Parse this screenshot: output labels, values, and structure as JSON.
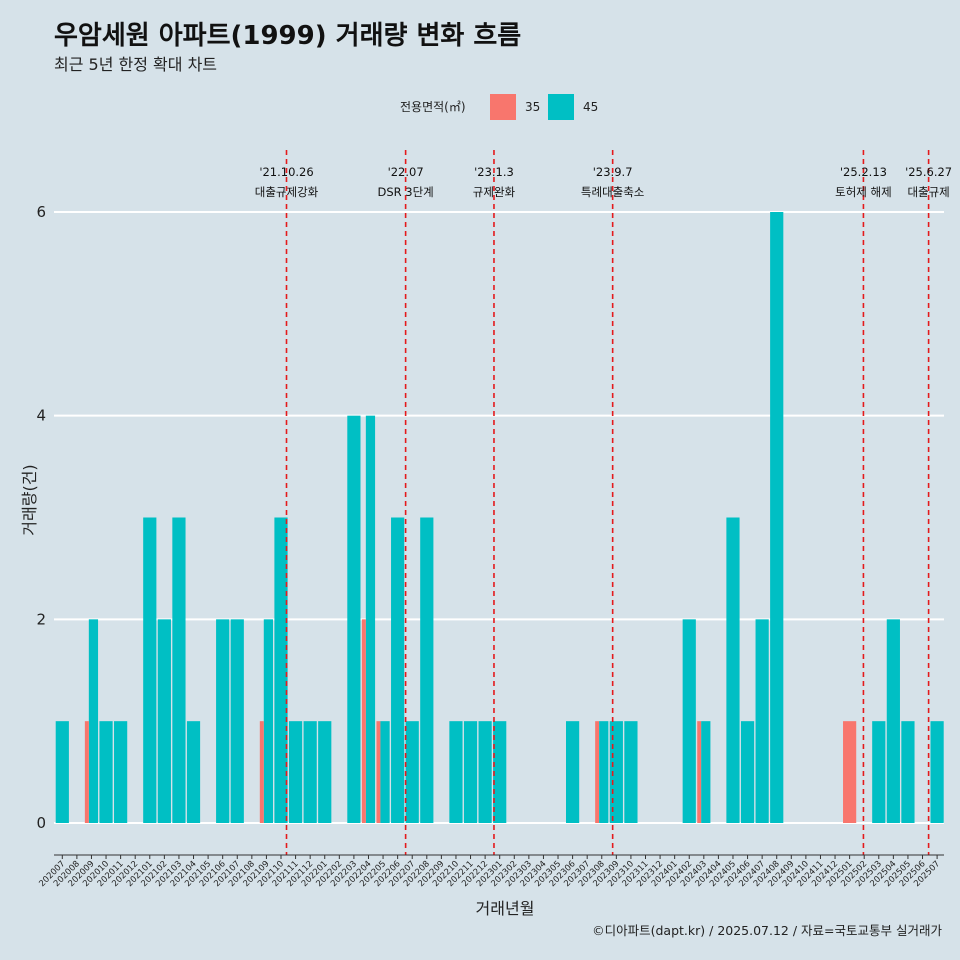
{
  "title": "우암세원 아파트(1999) 거래량 변화 흐름",
  "subtitle": "최근 5년 한정 확대 차트",
  "caption": "©디아파트(dapt.kr) / 2025.07.12 / 자료=국토교통부 실거래가",
  "legend": {
    "title": "전용면적(㎡)",
    "items": [
      {
        "label": "35",
        "color": "#f8766d"
      },
      {
        "label": "45",
        "color": "#00bfc4"
      }
    ]
  },
  "chart_data": {
    "type": "bar",
    "xlabel": "거래년월",
    "ylabel": "거래량(건)",
    "ylim": [
      0,
      6
    ],
    "yticks": [
      0,
      2,
      4,
      6
    ],
    "grid": true,
    "legend_position": "top",
    "categories": [
      "202007",
      "202008",
      "202009",
      "202010",
      "202011",
      "202012",
      "202101",
      "202102",
      "202103",
      "202104",
      "202105",
      "202106",
      "202107",
      "202108",
      "202109",
      "202110",
      "202111",
      "202112",
      "202201",
      "202202",
      "202203",
      "202204",
      "202205",
      "202206",
      "202207",
      "202208",
      "202209",
      "202210",
      "202211",
      "202212",
      "202301",
      "202302",
      "202303",
      "202304",
      "202305",
      "202306",
      "202307",
      "202308",
      "202309",
      "202310",
      "202311",
      "202312",
      "202401",
      "202402",
      "202403",
      "202404",
      "202405",
      "202406",
      "202407",
      "202408",
      "202409",
      "202410",
      "202411",
      "202412",
      "202501",
      "202502",
      "202503",
      "202504",
      "202505",
      "202506",
      "202507"
    ],
    "bars": [
      {
        "month": "202007",
        "area": "45",
        "value": 1
      },
      {
        "month": "202009",
        "area": "35",
        "value": 1
      },
      {
        "month": "202009",
        "area": "45",
        "value": 2
      },
      {
        "month": "202010",
        "area": "45",
        "value": 1
      },
      {
        "month": "202011",
        "area": "45",
        "value": 1
      },
      {
        "month": "202101",
        "area": "45",
        "value": 3
      },
      {
        "month": "202102",
        "area": "45",
        "value": 2
      },
      {
        "month": "202103",
        "area": "45",
        "value": 3
      },
      {
        "month": "202104",
        "area": "45",
        "value": 1
      },
      {
        "month": "202106",
        "area": "45",
        "value": 2
      },
      {
        "month": "202107",
        "area": "45",
        "value": 2
      },
      {
        "month": "202109",
        "area": "35",
        "value": 1
      },
      {
        "month": "202109",
        "area": "45",
        "value": 2
      },
      {
        "month": "202110",
        "area": "45",
        "value": 3
      },
      {
        "month": "202111",
        "area": "45",
        "value": 1
      },
      {
        "month": "202112",
        "area": "45",
        "value": 1
      },
      {
        "month": "202201",
        "area": "45",
        "value": 1
      },
      {
        "month": "202203",
        "area": "45",
        "value": 4
      },
      {
        "month": "202204",
        "area": "35",
        "value": 2
      },
      {
        "month": "202204",
        "area": "45",
        "value": 4
      },
      {
        "month": "202205",
        "area": "35",
        "value": 1
      },
      {
        "month": "202205",
        "area": "45",
        "value": 1
      },
      {
        "month": "202206",
        "area": "45",
        "value": 3
      },
      {
        "month": "202207",
        "area": "45",
        "value": 1
      },
      {
        "month": "202208",
        "area": "45",
        "value": 3
      },
      {
        "month": "202210",
        "area": "45",
        "value": 1
      },
      {
        "month": "202211",
        "area": "45",
        "value": 1
      },
      {
        "month": "202212",
        "area": "45",
        "value": 1
      },
      {
        "month": "202301",
        "area": "45",
        "value": 1
      },
      {
        "month": "202306",
        "area": "45",
        "value": 1
      },
      {
        "month": "202308",
        "area": "35",
        "value": 1
      },
      {
        "month": "202308",
        "area": "45",
        "value": 1
      },
      {
        "month": "202309",
        "area": "45",
        "value": 1
      },
      {
        "month": "202310",
        "area": "45",
        "value": 1
      },
      {
        "month": "202402",
        "area": "45",
        "value": 2
      },
      {
        "month": "202403",
        "area": "35",
        "value": 1
      },
      {
        "month": "202403",
        "area": "45",
        "value": 1
      },
      {
        "month": "202405",
        "area": "45",
        "value": 3
      },
      {
        "month": "202406",
        "area": "45",
        "value": 1
      },
      {
        "month": "202407",
        "area": "45",
        "value": 2
      },
      {
        "month": "202408",
        "area": "45",
        "value": 6
      },
      {
        "month": "202501",
        "area": "35",
        "value": 1
      },
      {
        "month": "202503",
        "area": "45",
        "value": 1
      },
      {
        "month": "202504",
        "area": "45",
        "value": 2
      },
      {
        "month": "202505",
        "area": "45",
        "value": 1
      },
      {
        "month": "202507",
        "area": "45",
        "value": 1
      }
    ],
    "events": [
      {
        "date": "'21.10.26",
        "label": "대출규제강화",
        "month": "202110",
        "offset": 0.83
      },
      {
        "date": "'22.07",
        "label": "DSR 3단계",
        "month": "202207",
        "offset": 0.0
      },
      {
        "date": "'23.1.3",
        "label": "규제완화",
        "month": "202301",
        "offset": 0.06
      },
      {
        "date": "'23.9.7",
        "label": "특례대출축소",
        "month": "202309",
        "offset": 0.2
      },
      {
        "date": "'25.2.13",
        "label": "토허제 해제",
        "month": "202502",
        "offset": 0.4
      },
      {
        "date": "'25.6.27",
        "label": "대출규제",
        "month": "202506",
        "offset": 0.87
      }
    ]
  }
}
